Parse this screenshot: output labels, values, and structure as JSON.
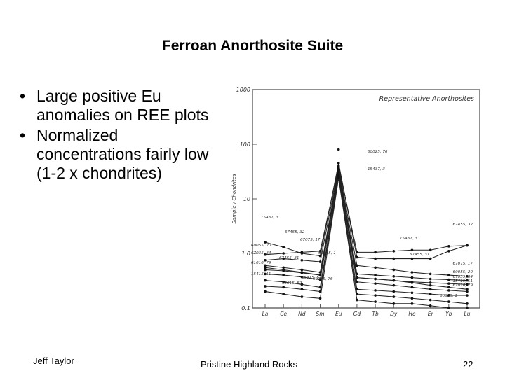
{
  "slide": {
    "title": "Ferroan Anorthosite Suite",
    "bullets": [
      "Large positive Eu anomalies on REE plots",
      "Normalized concentrations fairly low (1-2 x chondrites)"
    ],
    "bullet_glyph": "•",
    "footer_left": "Jeff Taylor",
    "footer_center": "Pristine Highland Rocks",
    "page_number": "22"
  },
  "chart_data": {
    "type": "line",
    "title": "Representative Anorthosites",
    "ylabel": "Sample / Chondrites",
    "yscale": "log",
    "ylim": [
      0.1,
      1000
    ],
    "yticks": [
      "1000",
      "100",
      "10",
      "1.0",
      "0.1"
    ],
    "categories": [
      "La",
      "Ce",
      "Nd",
      "Sm",
      "Eu",
      "Gd",
      "Tb",
      "Dy",
      "Ho",
      "Er",
      "Yb",
      "Lu"
    ],
    "grid": false,
    "series": [
      {
        "name": "60025, 76",
        "values": [
          null,
          null,
          null,
          null,
          80,
          null,
          null,
          null,
          null,
          null,
          null,
          null
        ]
      },
      {
        "name": "15437, 3",
        "values": [
          1.6,
          1.3,
          1.0,
          0.9,
          45,
          0.85,
          0.8,
          0.8,
          0.8,
          0.8,
          1.1,
          1.4
        ]
      },
      {
        "name": "67455, 32",
        "values": [
          0.95,
          1.0,
          1.05,
          1.1,
          40,
          1.05,
          1.05,
          1.1,
          1.15,
          1.15,
          1.35,
          1.4
        ]
      },
      {
        "name": "67075, 17",
        "values": [
          0.75,
          0.8,
          0.75,
          0.7,
          38,
          0.6,
          0.55,
          0.5,
          0.45,
          0.42,
          0.4,
          0.38
        ]
      },
      {
        "name": "60055, 20",
        "values": [
          0.6,
          0.55,
          0.5,
          0.45,
          36,
          0.42,
          0.4,
          0.38,
          0.36,
          0.34,
          0.33,
          0.32
        ]
      },
      {
        "name": "67035, 34",
        "values": [
          0.55,
          0.5,
          0.45,
          0.4,
          34,
          0.36,
          0.34,
          0.32,
          0.3,
          0.29,
          0.28,
          0.27
        ]
      },
      {
        "name": "67455, 31",
        "values": [
          0.5,
          0.48,
          0.44,
          0.4,
          32,
          0.36,
          0.34,
          0.32,
          0.29,
          0.26,
          0.24,
          0.22
        ]
      },
      {
        "name": "61016, 79",
        "values": [
          0.42,
          0.4,
          0.37,
          0.33,
          30,
          0.3,
          0.28,
          0.26,
          0.24,
          0.22,
          0.21,
          0.2
        ]
      },
      {
        "name": "15415, 11",
        "values": [
          0.32,
          0.3,
          0.27,
          0.24,
          28,
          0.22,
          0.21,
          0.2,
          0.19,
          0.18,
          0.17,
          0.17
        ]
      },
      {
        "name": "60015, 76",
        "values": [
          0.25,
          0.24,
          0.22,
          0.2,
          26,
          0.18,
          0.17,
          0.16,
          0.15,
          0.14,
          0.13,
          0.12
        ]
      },
      {
        "name": "65315, 52",
        "values": [
          0.2,
          0.18,
          0.16,
          0.15,
          24,
          0.14,
          0.13,
          0.12,
          0.12,
          0.11,
          0.1,
          0.1
        ]
      }
    ],
    "annotations": [
      "60025, 76",
      "15437, 3",
      "15437, 3",
      "67455, 32",
      "67075, 17",
      "60055, 20",
      "67035, 34",
      "67455, 31",
      "61016, 79",
      "15415, 11",
      "60015, 76",
      "65315, 52",
      "60055, 1",
      "65315, 52",
      "67455, 32",
      "15437, 3",
      "67455, 31",
      "67075, 17",
      "60055, 20",
      "67035, 34",
      "15415, 11",
      "61016, 79",
      "60055, 1"
    ]
  }
}
